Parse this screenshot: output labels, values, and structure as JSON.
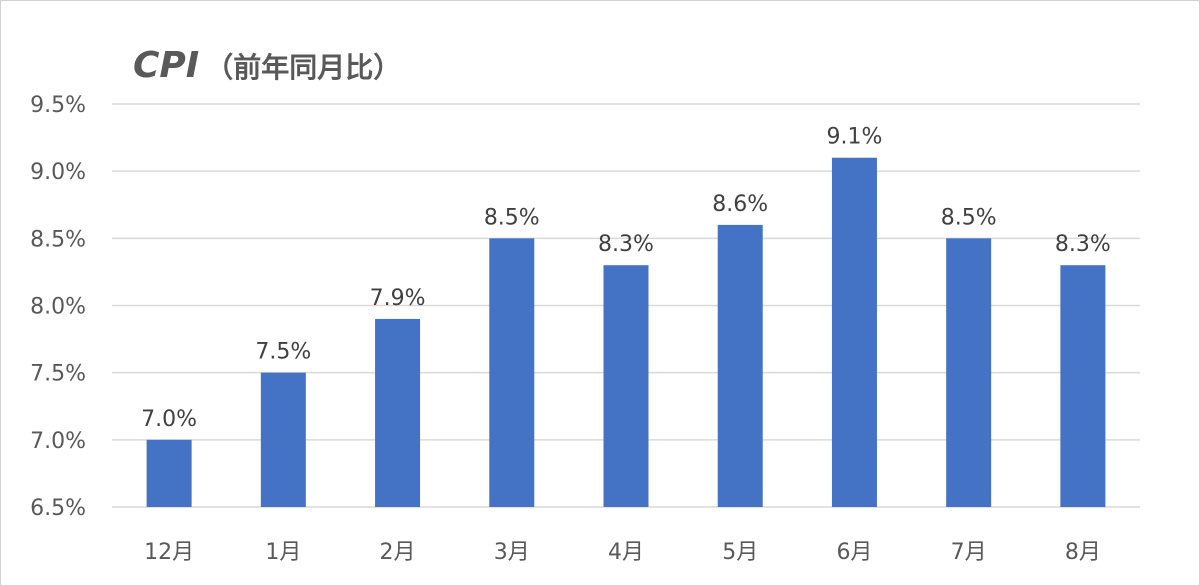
{
  "chart_data": {
    "type": "bar",
    "title": "CPI",
    "subtitle": "（前年同月比）",
    "categories": [
      "12月",
      "1月",
      "2月",
      "3月",
      "4月",
      "5月",
      "6月",
      "7月",
      "8月"
    ],
    "values": [
      7.0,
      7.5,
      7.9,
      8.5,
      8.3,
      8.6,
      9.1,
      8.5,
      8.3
    ],
    "data_labels": [
      "7.0%",
      "7.5%",
      "7.9%",
      "8.5%",
      "8.3%",
      "8.6%",
      "9.1%",
      "8.5%",
      "8.3%"
    ],
    "yticks": [
      6.5,
      7.0,
      7.5,
      8.0,
      8.5,
      9.0,
      9.5
    ],
    "ytick_labels": [
      "6.5%",
      "7.0%",
      "7.5%",
      "8.0%",
      "8.5%",
      "9.0%",
      "9.5%"
    ],
    "ylim": [
      6.5,
      9.5
    ],
    "xlabel": "",
    "ylabel": "",
    "grid": true,
    "legend": "none",
    "bar_color": "#4472C4",
    "grid_color": "#D9D9D9"
  }
}
